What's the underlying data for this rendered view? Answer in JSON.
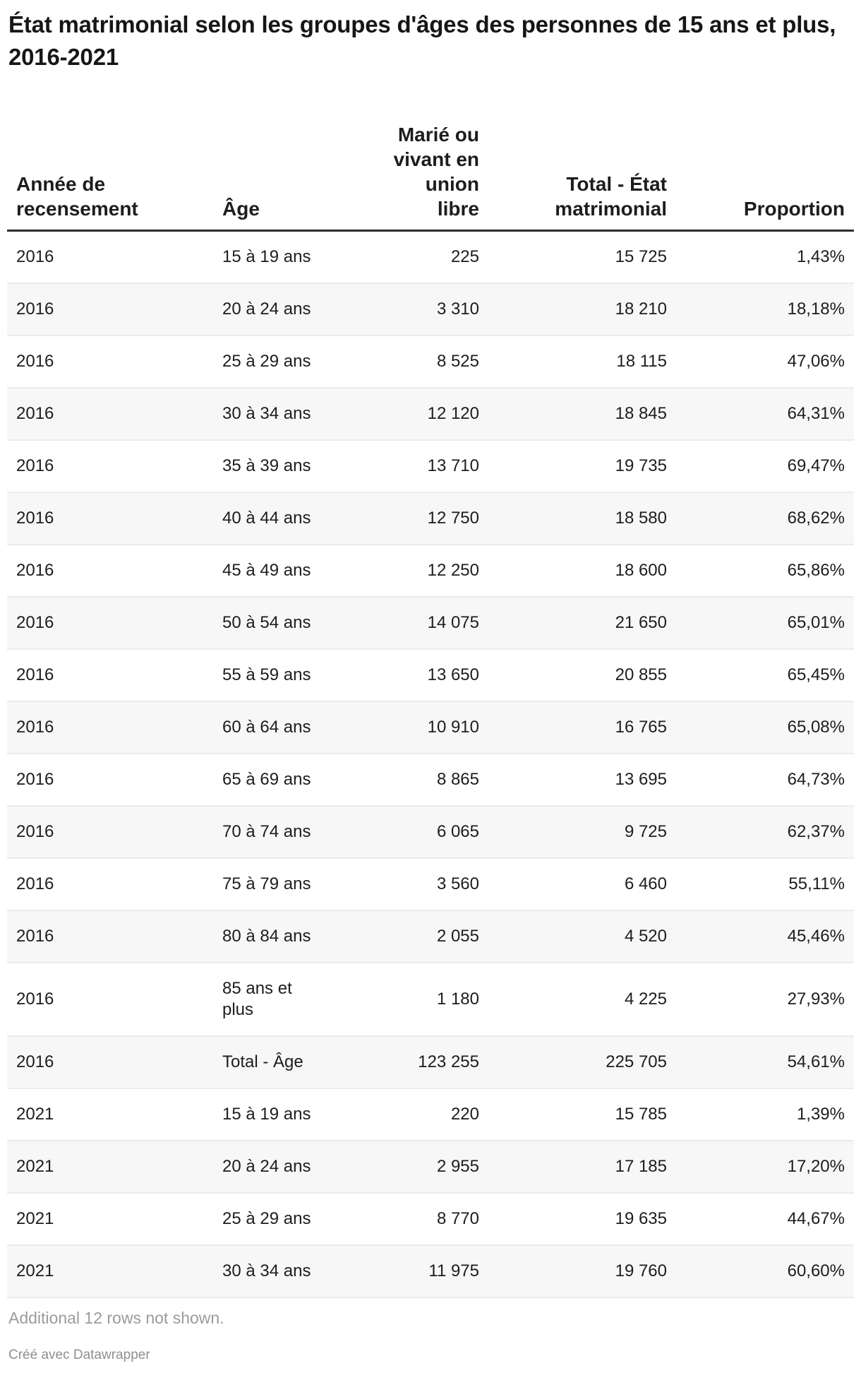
{
  "title": "État matrimonial selon les groupes d'âges des personnes de 15 ans et plus, 2016-2021",
  "chart_data": {
    "type": "table",
    "columns": [
      "Année de recensement",
      "Âge",
      "Marié ou vivant en union libre",
      "Total - État matrimonial",
      "Proportion"
    ],
    "rows": [
      [
        "2016",
        "15 à 19 ans",
        "225",
        "15 725",
        "1,43%"
      ],
      [
        "2016",
        "20 à 24 ans",
        "3 310",
        "18 210",
        "18,18%"
      ],
      [
        "2016",
        "25 à 29 ans",
        "8 525",
        "18 115",
        "47,06%"
      ],
      [
        "2016",
        "30 à 34 ans",
        "12 120",
        "18 845",
        "64,31%"
      ],
      [
        "2016",
        "35 à 39 ans",
        "13 710",
        "19 735",
        "69,47%"
      ],
      [
        "2016",
        "40 à 44 ans",
        "12 750",
        "18 580",
        "68,62%"
      ],
      [
        "2016",
        "45 à 49 ans",
        "12 250",
        "18 600",
        "65,86%"
      ],
      [
        "2016",
        "50 à 54 ans",
        "14 075",
        "21 650",
        "65,01%"
      ],
      [
        "2016",
        "55 à 59 ans",
        "13 650",
        "20 855",
        "65,45%"
      ],
      [
        "2016",
        "60 à 64 ans",
        "10 910",
        "16 765",
        "65,08%"
      ],
      [
        "2016",
        "65 à 69 ans",
        "8 865",
        "13 695",
        "64,73%"
      ],
      [
        "2016",
        "70 à 74 ans",
        "6 065",
        "9 725",
        "62,37%"
      ],
      [
        "2016",
        "75 à 79 ans",
        "3 560",
        "6 460",
        "55,11%"
      ],
      [
        "2016",
        "80 à 84 ans",
        "2 055",
        "4 520",
        "45,46%"
      ],
      [
        "2016",
        "85 ans et plus",
        "1 180",
        "4 225",
        "27,93%"
      ],
      [
        "2016",
        "Total - Âge",
        "123 255",
        "225 705",
        "54,61%"
      ],
      [
        "2021",
        "15 à 19 ans",
        "220",
        "15 785",
        "1,39%"
      ],
      [
        "2021",
        "20 à 24 ans",
        "2 955",
        "17 185",
        "17,20%"
      ],
      [
        "2021",
        "25 à 29 ans",
        "8 770",
        "19 635",
        "44,67%"
      ],
      [
        "2021",
        "30 à 34 ans",
        "11 975",
        "19 760",
        "60,60%"
      ]
    ]
  },
  "footer": {
    "note": "Additional 12 rows not shown.",
    "byline": "Créé avec Datawrapper"
  },
  "colors": {
    "title_text": "#161616",
    "body_text": "#1d1d1d",
    "header_border": "#2e2e2e",
    "row_border": "#ebebeb",
    "zebra_row": "#f7f7f7",
    "note_text": "#9b9b9b",
    "byline_text": "#8f8f8f"
  }
}
